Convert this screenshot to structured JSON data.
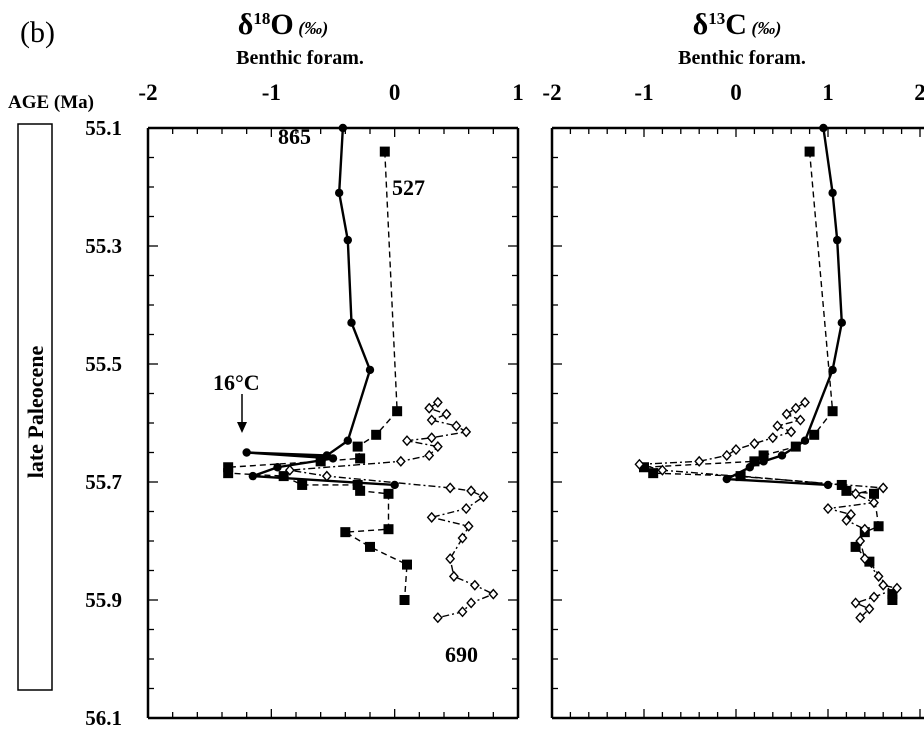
{
  "panel_label": "(b)",
  "age_axis": {
    "label": "AGE (Ma)",
    "ticks": [
      "55.1",
      "55.3",
      "55.5",
      "55.7",
      "55.9",
      "56.1"
    ],
    "range": [
      55.1,
      56.1
    ]
  },
  "epoch_label": "late Paleocene",
  "annotation": {
    "text": "16°C"
  },
  "chart_data": [
    {
      "type": "line",
      "title": "δ18O",
      "title_main": "δ",
      "title_sup": "18",
      "title_elem": "O",
      "title_unit": "(‰)",
      "subtitle": "Benthic foram.",
      "x_ticks": [
        "-2",
        "-1",
        "0",
        "1"
      ],
      "xlim": [
        -2,
        1
      ],
      "ylim": [
        55.1,
        56.1
      ],
      "y_inverted": true,
      "series": [
        {
          "name": "865",
          "marker": "circle",
          "line": "solid",
          "points": [
            [
              -0.42,
              55.1
            ],
            [
              -0.45,
              55.21
            ],
            [
              -0.38,
              55.29
            ],
            [
              -0.35,
              55.43
            ],
            [
              -0.2,
              55.51
            ],
            [
              -0.38,
              55.63
            ],
            [
              -0.55,
              55.655
            ],
            [
              -1.2,
              55.65
            ],
            [
              -0.5,
              55.66
            ],
            [
              -0.95,
              55.675
            ],
            [
              -1.15,
              55.69
            ],
            [
              0.0,
              55.705
            ]
          ]
        },
        {
          "name": "527",
          "marker": "square",
          "line": "dashed",
          "points": [
            [
              -0.08,
              55.14
            ],
            [
              0.02,
              55.58
            ],
            [
              -0.15,
              55.62
            ],
            [
              -0.3,
              55.64
            ],
            [
              -0.28,
              55.66
            ],
            [
              -0.6,
              55.665
            ],
            [
              -1.35,
              55.675
            ],
            [
              -1.35,
              55.685
            ],
            [
              -0.9,
              55.69
            ],
            [
              -0.75,
              55.705
            ],
            [
              -0.3,
              55.705
            ],
            [
              -0.28,
              55.715
            ],
            [
              -0.05,
              55.72
            ],
            [
              -0.05,
              55.78
            ],
            [
              -0.4,
              55.785
            ],
            [
              -0.2,
              55.81
            ],
            [
              0.1,
              55.84
            ],
            [
              0.08,
              55.9
            ]
          ]
        },
        {
          "name": "690",
          "marker": "diamond",
          "line": "dash-dot",
          "points": [
            [
              0.35,
              55.565
            ],
            [
              0.28,
              55.575
            ],
            [
              0.42,
              55.585
            ],
            [
              0.3,
              55.595
            ],
            [
              0.5,
              55.605
            ],
            [
              0.58,
              55.615
            ],
            [
              0.3,
              55.625
            ],
            [
              0.1,
              55.63
            ],
            [
              0.35,
              55.64
            ],
            [
              0.28,
              55.655
            ],
            [
              0.05,
              55.665
            ],
            [
              -0.85,
              55.68
            ],
            [
              -0.55,
              55.69
            ],
            [
              0.45,
              55.71
            ],
            [
              0.62,
              55.715
            ],
            [
              0.72,
              55.725
            ],
            [
              0.58,
              55.745
            ],
            [
              0.3,
              55.76
            ],
            [
              0.6,
              55.775
            ],
            [
              0.55,
              55.795
            ],
            [
              0.45,
              55.83
            ],
            [
              0.48,
              55.86
            ],
            [
              0.65,
              55.875
            ],
            [
              0.8,
              55.89
            ],
            [
              0.62,
              55.905
            ],
            [
              0.55,
              55.92
            ],
            [
              0.35,
              55.93
            ]
          ]
        }
      ],
      "labels": [
        "865",
        "527",
        "690"
      ]
    },
    {
      "type": "line",
      "title": "δ13C",
      "title_main": "δ",
      "title_sup": "13",
      "title_elem": "C",
      "title_unit": "(‰)",
      "subtitle": "Benthic foram.",
      "x_ticks": [
        "-2",
        "-1",
        "0",
        "1",
        "2"
      ],
      "xlim": [
        -2,
        2
      ],
      "ylim": [
        55.1,
        56.1
      ],
      "y_inverted": true,
      "series": [
        {
          "name": "865",
          "marker": "circle",
          "line": "solid",
          "points": [
            [
              0.95,
              55.1
            ],
            [
              1.05,
              55.21
            ],
            [
              1.1,
              55.29
            ],
            [
              1.15,
              55.43
            ],
            [
              1.05,
              55.51
            ],
            [
              0.75,
              55.63
            ],
            [
              0.5,
              55.655
            ],
            [
              0.3,
              55.665
            ],
            [
              0.15,
              55.675
            ],
            [
              -0.1,
              55.695
            ],
            [
              1.0,
              55.705
            ]
          ]
        },
        {
          "name": "527",
          "marker": "square",
          "line": "dashed",
          "points": [
            [
              0.8,
              55.14
            ],
            [
              1.05,
              55.58
            ],
            [
              0.85,
              55.62
            ],
            [
              0.65,
              55.64
            ],
            [
              0.3,
              55.655
            ],
            [
              0.2,
              55.665
            ],
            [
              -1.0,
              55.675
            ],
            [
              -0.9,
              55.685
            ],
            [
              0.05,
              55.69
            ],
            [
              1.15,
              55.705
            ],
            [
              1.2,
              55.715
            ],
            [
              1.5,
              55.72
            ],
            [
              1.55,
              55.775
            ],
            [
              1.4,
              55.785
            ],
            [
              1.3,
              55.81
            ],
            [
              1.45,
              55.835
            ],
            [
              1.7,
              55.89
            ],
            [
              1.7,
              55.9
            ]
          ]
        },
        {
          "name": "690",
          "marker": "diamond",
          "line": "dash-dot",
          "points": [
            [
              0.75,
              55.565
            ],
            [
              0.65,
              55.575
            ],
            [
              0.55,
              55.585
            ],
            [
              0.7,
              55.595
            ],
            [
              0.45,
              55.605
            ],
            [
              0.6,
              55.615
            ],
            [
              0.4,
              55.625
            ],
            [
              0.2,
              55.635
            ],
            [
              0.0,
              55.645
            ],
            [
              -0.1,
              55.655
            ],
            [
              -0.4,
              55.665
            ],
            [
              -1.05,
              55.67
            ],
            [
              -0.8,
              55.68
            ],
            [
              1.6,
              55.71
            ],
            [
              1.3,
              55.72
            ],
            [
              1.5,
              55.735
            ],
            [
              1.0,
              55.745
            ],
            [
              1.25,
              55.755
            ],
            [
              1.2,
              55.765
            ],
            [
              1.4,
              55.78
            ],
            [
              1.35,
              55.8
            ],
            [
              1.4,
              55.83
            ],
            [
              1.55,
              55.86
            ],
            [
              1.6,
              55.875
            ],
            [
              1.75,
              55.88
            ],
            [
              1.5,
              55.895
            ],
            [
              1.3,
              55.905
            ],
            [
              1.45,
              55.915
            ],
            [
              1.35,
              55.93
            ]
          ]
        }
      ]
    }
  ]
}
